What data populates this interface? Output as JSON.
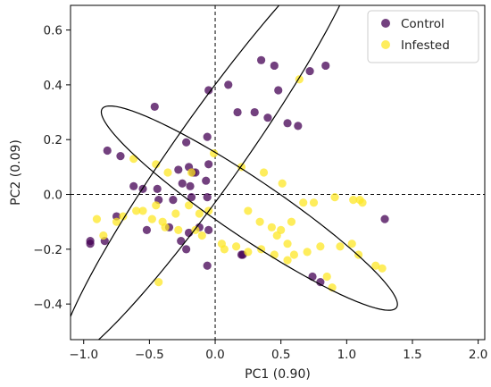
{
  "chart_data": {
    "type": "scatter",
    "title": "",
    "xlabel": "PC1 (0.90)",
    "ylabel": "PC2 (0.09)",
    "xlim": [
      -1.1,
      2.05
    ],
    "ylim": [
      -0.53,
      0.69
    ],
    "xticks": [
      -1.0,
      -0.5,
      0.0,
      0.5,
      1.0,
      1.5,
      2.0
    ],
    "xtick_labels": [
      "−1.0",
      "−0.5",
      "0.0",
      "0.5",
      "1.0",
      "1.5",
      "2.0"
    ],
    "yticks": [
      -0.4,
      -0.2,
      0.0,
      0.2,
      0.4,
      0.6
    ],
    "ytick_labels": [
      "−0.4",
      "−0.2",
      "0.0",
      "0.2",
      "0.4",
      "0.6"
    ],
    "grid": false,
    "legend_position": "top-right",
    "reference_lines": {
      "x": 0,
      "y": 0,
      "style": "dashed"
    },
    "series": [
      {
        "name": "Control",
        "color": "#440154",
        "alpha": 0.75,
        "points": [
          [
            -0.82,
            0.16
          ],
          [
            -0.72,
            0.14
          ],
          [
            -0.46,
            0.32
          ],
          [
            -0.22,
            0.19
          ],
          [
            -0.06,
            0.21
          ],
          [
            -0.05,
            0.38
          ],
          [
            0.1,
            0.4
          ],
          [
            0.17,
            0.3
          ],
          [
            0.3,
            0.3
          ],
          [
            0.35,
            0.49
          ],
          [
            0.4,
            0.28
          ],
          [
            0.45,
            0.47
          ],
          [
            0.48,
            0.38
          ],
          [
            0.55,
            0.26
          ],
          [
            0.63,
            0.25
          ],
          [
            0.72,
            0.45
          ],
          [
            0.84,
            0.47
          ],
          [
            -0.28,
            0.09
          ],
          [
            -0.2,
            0.1
          ],
          [
            -0.17,
            0.08
          ],
          [
            -0.15,
            0.08
          ],
          [
            -0.05,
            0.11
          ],
          [
            -0.07,
            0.05
          ],
          [
            -0.19,
            0.03
          ],
          [
            -0.44,
            0.02
          ],
          [
            -0.55,
            0.02
          ],
          [
            -0.62,
            0.03
          ],
          [
            -0.25,
            0.04
          ],
          [
            -0.18,
            -0.01
          ],
          [
            -0.06,
            -0.01
          ],
          [
            -0.43,
            -0.02
          ],
          [
            -0.32,
            -0.02
          ],
          [
            -0.75,
            -0.08
          ],
          [
            -0.52,
            -0.13
          ],
          [
            -0.35,
            -0.12
          ],
          [
            -0.26,
            -0.17
          ],
          [
            -0.2,
            -0.14
          ],
          [
            -0.12,
            -0.12
          ],
          [
            -0.05,
            -0.13
          ],
          [
            -0.22,
            -0.2
          ],
          [
            -0.06,
            -0.26
          ],
          [
            -0.95,
            -0.17
          ],
          [
            -0.95,
            -0.18
          ],
          [
            -0.84,
            -0.17
          ],
          [
            0.2,
            -0.22
          ],
          [
            0.21,
            -0.22
          ],
          [
            0.74,
            -0.3
          ],
          [
            0.8,
            -0.32
          ],
          [
            1.29,
            -0.09
          ]
        ]
      },
      {
        "name": "Infested",
        "color": "#fde725",
        "alpha": 0.75,
        "points": [
          [
            -0.62,
            0.13
          ],
          [
            -0.45,
            0.11
          ],
          [
            -0.36,
            0.08
          ],
          [
            -0.18,
            0.08
          ],
          [
            -0.01,
            0.15
          ],
          [
            0.2,
            0.1
          ],
          [
            0.37,
            0.08
          ],
          [
            0.51,
            0.04
          ],
          [
            -0.6,
            -0.06
          ],
          [
            -0.7,
            -0.08
          ],
          [
            -0.55,
            -0.06
          ],
          [
            -0.45,
            -0.04
          ],
          [
            -0.4,
            -0.1
          ],
          [
            -0.3,
            -0.07
          ],
          [
            -0.2,
            -0.04
          ],
          [
            -0.12,
            -0.07
          ],
          [
            -0.05,
            -0.06
          ],
          [
            -0.9,
            -0.09
          ],
          [
            -0.75,
            -0.1
          ],
          [
            -0.48,
            -0.09
          ],
          [
            -0.38,
            -0.12
          ],
          [
            -0.28,
            -0.13
          ],
          [
            -0.15,
            -0.13
          ],
          [
            -0.1,
            -0.15
          ],
          [
            0.05,
            -0.18
          ],
          [
            0.25,
            -0.06
          ],
          [
            0.34,
            -0.1
          ],
          [
            0.43,
            -0.12
          ],
          [
            0.5,
            -0.13
          ],
          [
            0.58,
            -0.1
          ],
          [
            0.67,
            -0.03
          ],
          [
            0.75,
            -0.03
          ],
          [
            0.91,
            -0.01
          ],
          [
            1.05,
            -0.02
          ],
          [
            1.1,
            -0.02
          ],
          [
            1.12,
            -0.03
          ],
          [
            0.47,
            -0.15
          ],
          [
            0.55,
            -0.18
          ],
          [
            0.6,
            -0.22
          ],
          [
            0.7,
            -0.21
          ],
          [
            0.8,
            -0.19
          ],
          [
            0.95,
            -0.19
          ],
          [
            0.07,
            -0.2
          ],
          [
            0.16,
            -0.19
          ],
          [
            0.25,
            -0.21
          ],
          [
            0.35,
            -0.2
          ],
          [
            0.45,
            -0.22
          ],
          [
            0.55,
            -0.24
          ],
          [
            0.85,
            -0.3
          ],
          [
            0.89,
            -0.34
          ],
          [
            1.09,
            -0.22
          ],
          [
            1.22,
            -0.26
          ],
          [
            1.27,
            -0.27
          ],
          [
            -0.43,
            -0.32
          ],
          [
            -0.85,
            -0.15
          ],
          [
            0.64,
            0.42
          ],
          [
            1.04,
            -0.18
          ]
        ]
      }
    ],
    "confidence_ellipses": [
      {
        "series": "Control",
        "center": [
          -0.04,
          0.16
        ],
        "semi_axes": [
          1.36,
          0.18
        ],
        "angle_deg": 33.5,
        "color": "#000000"
      },
      {
        "series": "Infested",
        "center": [
          0.26,
          -0.05
        ],
        "semi_axes": [
          1.18,
          0.12
        ],
        "angle_deg": -17.5,
        "color": "#000000"
      }
    ]
  }
}
